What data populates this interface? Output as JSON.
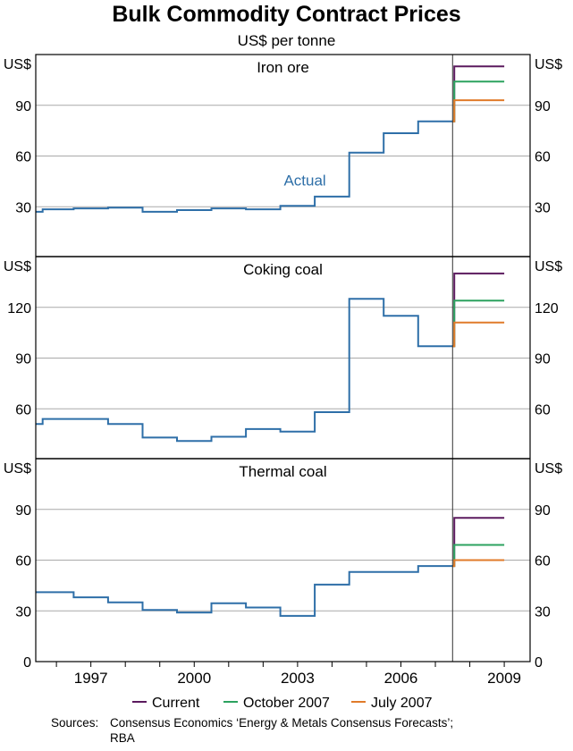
{
  "chart_data": {
    "type": "line",
    "title": "Bulk Commodity Contract Prices",
    "subtitle": "US$ per tonne",
    "unit_label": "US$",
    "x_tick_labels": [
      "1997",
      "2000",
      "2003",
      "2006",
      "2009"
    ],
    "x_ticks": [
      1997,
      2000,
      2003,
      2006,
      2009
    ],
    "xlim": [
      1995.4,
      2009.75
    ],
    "forecast_divider_x": 2007.5,
    "annotation": "Actual",
    "legend": [
      {
        "name": "Current",
        "color": "#5b1a5e"
      },
      {
        "name": "October 2007",
        "color": "#2ca25f"
      },
      {
        "name": "July 2007",
        "color": "#e07b2a"
      }
    ],
    "panels": [
      {
        "title": "Iron ore",
        "ylim": [
          0,
          120
        ],
        "yticks": [
          30,
          60,
          90
        ],
        "actual": {
          "color": "#2e6fa8",
          "x": [
            1995.4,
            1995.6,
            1996.5,
            1997.5,
            1998.5,
            1999.5,
            2000.5,
            2001.5,
            2002.5,
            2003.5,
            2004.5,
            2005.5,
            2006.5,
            2007.5
          ],
          "y": [
            27,
            28.5,
            29,
            29.5,
            27,
            28,
            29,
            28.5,
            30.5,
            36,
            62,
            73.5,
            80.5,
            80.5
          ]
        },
        "forecasts": [
          {
            "name": "Current",
            "y": 113
          },
          {
            "name": "October 2007",
            "y": 104
          },
          {
            "name": "July 2007",
            "y": 93
          }
        ]
      },
      {
        "title": "Coking coal",
        "ylim": [
          30,
          150
        ],
        "yticks": [
          60,
          90,
          120
        ],
        "actual": {
          "color": "#2e6fa8",
          "x": [
            1995.4,
            1995.6,
            1996.5,
            1997.5,
            1998.5,
            1999.5,
            2000.5,
            2001.5,
            2002.5,
            2003.5,
            2004.5,
            2005.5,
            2006.5,
            2007.5
          ],
          "y": [
            51,
            54,
            54,
            51,
            43,
            41,
            43.5,
            48,
            46.5,
            58,
            125,
            115,
            97,
            97
          ]
        },
        "forecasts": [
          {
            "name": "Current",
            "y": 140
          },
          {
            "name": "October 2007",
            "y": 124
          },
          {
            "name": "July 2007",
            "y": 111
          }
        ]
      },
      {
        "title": "Thermal coal",
        "ylim": [
          0,
          120
        ],
        "yticks": [
          0,
          30,
          60,
          90
        ],
        "actual": {
          "color": "#2e6fa8",
          "x": [
            1995.4,
            1996.5,
            1997.5,
            1998.5,
            1999.5,
            2000.5,
            2001.5,
            2002.5,
            2003.5,
            2004.5,
            2005.5,
            2006.5,
            2007.5
          ],
          "y": [
            41,
            38,
            35,
            30.5,
            29,
            34.5,
            32,
            27,
            45.5,
            53,
            53,
            56.5,
            56.5
          ]
        },
        "forecasts": [
          {
            "name": "Current",
            "y": 85
          },
          {
            "name": "October 2007",
            "y": 69
          },
          {
            "name": "July 2007",
            "y": 60
          }
        ]
      }
    ]
  },
  "sources": {
    "label": "Sources:",
    "line1": "Consensus Economics ‘Energy & Metals Consensus Forecasts’;",
    "line2": "RBA"
  }
}
